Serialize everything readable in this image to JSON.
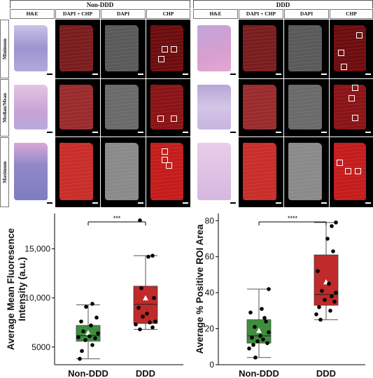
{
  "figure": {
    "group_headers": {
      "non_ddd": "Non-DDD",
      "ddd": "DDD"
    },
    "column_headers": [
      "H&E",
      "DAPI + CHP",
      "DAPI",
      "CHP"
    ],
    "row_headers": [
      "Minimum",
      "Median/Mean",
      "Maximum"
    ]
  },
  "chart_data": [
    {
      "type": "box",
      "ylabel": "Average Mean Fluoresence Intensity (a.u.)",
      "ylabel_lines": [
        "Average Mean Fluoresence",
        "Intensity (a.u.)"
      ],
      "categories": [
        "Non-DDD",
        "DDD"
      ],
      "yticks": [
        5000,
        10000,
        15000
      ],
      "ytick_labels": [
        "5000",
        "10,000",
        "15,000"
      ],
      "ylim": [
        3200,
        18600
      ],
      "significance": "***",
      "colors": {
        "Non-DDD": "#3e8e3e",
        "DDD": "#c02a2a"
      },
      "boxes": [
        {
          "category": "Non-DDD",
          "whisker_low": 3800,
          "q1": 5600,
          "median": 6150,
          "q3": 7200,
          "whisker_high": 9300,
          "mean": 6450,
          "points": [
            3800,
            4600,
            5200,
            5700,
            5900,
            6000,
            6100,
            6400,
            6600,
            7200,
            7600,
            8000,
            9100,
            9400
          ]
        },
        {
          "category": "DDD",
          "whisker_low": 6800,
          "q1": 7400,
          "median": 9350,
          "q3": 11200,
          "whisker_high": 14300,
          "mean": 10000,
          "points": [
            6800,
            7000,
            7300,
            7500,
            7600,
            8100,
            8400,
            9000,
            10000,
            11000,
            14200,
            14300,
            17900
          ]
        }
      ]
    },
    {
      "type": "box",
      "ylabel": "Average % Positive ROI Area",
      "categories": [
        "Non-DDD",
        "DDD"
      ],
      "yticks": [
        0,
        20,
        40,
        60,
        80
      ],
      "ytick_labels": [
        "0",
        "20",
        "40",
        "60",
        "80"
      ],
      "ylim": [
        0,
        84
      ],
      "significance": "****",
      "colors": {
        "Non-DDD": "#3e8e3e",
        "DDD": "#c02a2a"
      },
      "boxes": [
        {
          "category": "Non-DDD",
          "whisker_low": 4,
          "q1": 12,
          "median": 16,
          "q3": 25,
          "whisker_high": 42,
          "mean": 19,
          "points": [
            4,
            9,
            11,
            12,
            13,
            14,
            15,
            16,
            18,
            21,
            24,
            26,
            29,
            31,
            42
          ]
        },
        {
          "category": "DDD",
          "whisker_low": 25,
          "q1": 33,
          "median": 39,
          "q3": 61,
          "whisker_high": 79,
          "mean": 46,
          "points": [
            25,
            28,
            30,
            32,
            35,
            36,
            38,
            40,
            41,
            45,
            52,
            63,
            70,
            77,
            79
          ]
        }
      ]
    }
  ]
}
